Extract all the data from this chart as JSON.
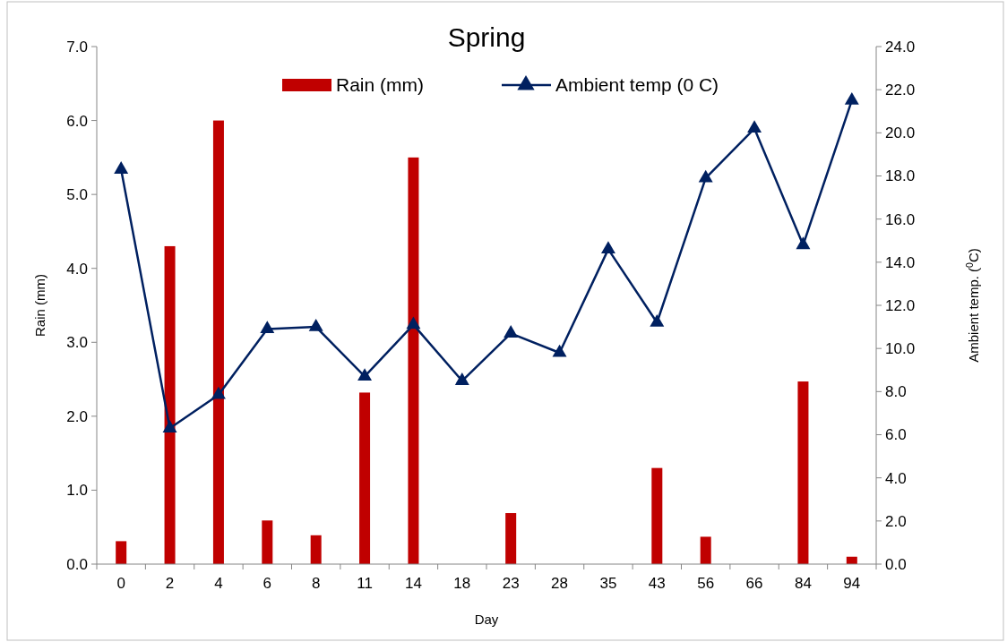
{
  "chart_data": {
    "type": "bar",
    "title": "Spring",
    "xlabel": "Day",
    "ylabel": "Rain (mm)",
    "y2label": "Ambient temp. ($^{0}$C)",
    "categories": [
      "0",
      "2",
      "4",
      "6",
      "8",
      "11",
      "14",
      "18",
      "23",
      "28",
      "35",
      "43",
      "56",
      "66",
      "84",
      "94"
    ],
    "series": [
      {
        "name": "Rain (mm)",
        "color": "#c00000",
        "values": [
          0.31,
          4.3,
          6.0,
          0.59,
          0.39,
          2.32,
          5.5,
          0,
          0.69,
          0,
          0,
          1.3,
          0.37,
          0,
          2.47,
          0.1
        ]
      },
      {
        "name": "Ambient temp (0 C)",
        "type": "line",
        "axis": "y2",
        "color": "#002060",
        "marker": "triangle",
        "values": [
          18.3,
          6.3,
          7.85,
          10.9,
          11.0,
          8.7,
          11.1,
          8.5,
          10.7,
          9.8,
          14.6,
          11.2,
          17.9,
          20.2,
          14.8,
          21.5
        ]
      }
    ],
    "ylim": [
      0,
      7
    ],
    "yticks": [
      {
        "value": 0,
        "label": "0.0"
      },
      {
        "value": 1,
        "label": "1.0"
      },
      {
        "value": 2,
        "label": "2.0"
      },
      {
        "value": 3,
        "label": "3.0"
      },
      {
        "value": 4,
        "label": "4.0"
      },
      {
        "value": 5,
        "label": "5.0"
      },
      {
        "value": 6,
        "label": "6.0"
      },
      {
        "value": 7,
        "label": "7.0"
      }
    ],
    "y2lim": [
      0,
      24
    ],
    "y2ticks": [
      {
        "value": 0,
        "label": "0.0"
      },
      {
        "value": 2,
        "label": "2.0"
      },
      {
        "value": 4,
        "label": "4.0"
      },
      {
        "value": 6,
        "label": "6.0"
      },
      {
        "value": 8,
        "label": "8.0"
      },
      {
        "value": 10,
        "label": "10.0"
      },
      {
        "value": 12,
        "label": "12.0"
      },
      {
        "value": 14,
        "label": "14.0"
      },
      {
        "value": 16,
        "label": "16.0"
      },
      {
        "value": 18,
        "label": "18.0"
      },
      {
        "value": 20,
        "label": "20.0"
      },
      {
        "value": 22,
        "label": "22.0"
      },
      {
        "value": 24,
        "label": "24.0"
      }
    ],
    "legend": "top",
    "grid": false
  }
}
